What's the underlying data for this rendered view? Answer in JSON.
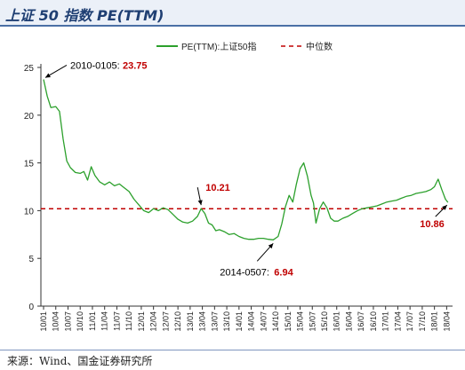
{
  "header": {
    "title": "上证 50 指数 PE(TTM)"
  },
  "source": {
    "text": "来源：Wind、国金证券研究所"
  },
  "chart_data": {
    "type": "line",
    "title": "上证 50 指数 PE(TTM)",
    "xlabel": "",
    "ylabel": "",
    "ylim": [
      0,
      25
    ],
    "y_ticks": [
      0,
      5,
      10,
      15,
      20,
      25
    ],
    "x_ticks": [
      "10/01",
      "10/04",
      "10/07",
      "10/10",
      "11/01",
      "11/04",
      "11/07",
      "11/10",
      "12/01",
      "12/04",
      "12/07",
      "12/10",
      "13/01",
      "13/04",
      "13/07",
      "13/10",
      "14/01",
      "14/04",
      "14/07",
      "14/10",
      "15/01",
      "15/04",
      "15/07",
      "15/10",
      "16/01",
      "16/04",
      "16/07",
      "16/10",
      "17/01",
      "17/04",
      "17/07",
      "17/10",
      "18/01",
      "18/04"
    ],
    "legend": {
      "position": "top",
      "entries": [
        "PE(TTM):上证50指",
        "中位数"
      ]
    },
    "series": [
      {
        "name": "PE(TTM):上证50指",
        "color": "#2ca02c",
        "style": "solid",
        "points": [
          [
            0,
            23.75
          ],
          [
            0.3,
            22.0
          ],
          [
            0.6,
            20.8
          ],
          [
            1.0,
            20.9
          ],
          [
            1.3,
            20.4
          ],
          [
            1.6,
            17.5
          ],
          [
            1.9,
            15.2
          ],
          [
            2.2,
            14.5
          ],
          [
            2.6,
            14.0
          ],
          [
            3.0,
            13.9
          ],
          [
            3.3,
            14.1
          ],
          [
            3.6,
            13.2
          ],
          [
            3.9,
            14.6
          ],
          [
            4.2,
            13.7
          ],
          [
            4.6,
            13.0
          ],
          [
            5.0,
            12.7
          ],
          [
            5.4,
            13.0
          ],
          [
            5.8,
            12.6
          ],
          [
            6.2,
            12.8
          ],
          [
            6.6,
            12.4
          ],
          [
            7.0,
            12.0
          ],
          [
            7.4,
            11.2
          ],
          [
            7.8,
            10.6
          ],
          [
            8.2,
            10.0
          ],
          [
            8.6,
            9.8
          ],
          [
            9.0,
            10.2
          ],
          [
            9.4,
            10.0
          ],
          [
            9.8,
            10.3
          ],
          [
            10.2,
            10.1
          ],
          [
            10.6,
            9.6
          ],
          [
            11.0,
            9.1
          ],
          [
            11.4,
            8.8
          ],
          [
            11.8,
            8.7
          ],
          [
            12.2,
            8.9
          ],
          [
            12.6,
            9.4
          ],
          [
            12.9,
            10.21
          ],
          [
            13.2,
            9.7
          ],
          [
            13.5,
            8.7
          ],
          [
            13.8,
            8.5
          ],
          [
            14.1,
            7.9
          ],
          [
            14.4,
            8.0
          ],
          [
            14.8,
            7.8
          ],
          [
            15.2,
            7.5
          ],
          [
            15.6,
            7.6
          ],
          [
            16.0,
            7.3
          ],
          [
            16.4,
            7.1
          ],
          [
            16.8,
            7.0
          ],
          [
            17.2,
            7.0
          ],
          [
            17.6,
            7.1
          ],
          [
            18.0,
            7.1
          ],
          [
            18.4,
            7.0
          ],
          [
            18.8,
            6.94
          ],
          [
            19.2,
            7.3
          ],
          [
            19.5,
            8.6
          ],
          [
            19.8,
            10.4
          ],
          [
            20.1,
            11.6
          ],
          [
            20.4,
            10.9
          ],
          [
            20.7,
            12.8
          ],
          [
            21.0,
            14.4
          ],
          [
            21.3,
            15.0
          ],
          [
            21.6,
            13.6
          ],
          [
            21.9,
            11.6
          ],
          [
            22.1,
            10.8
          ],
          [
            22.3,
            8.7
          ],
          [
            22.6,
            10.2
          ],
          [
            22.9,
            10.9
          ],
          [
            23.2,
            10.3
          ],
          [
            23.5,
            9.2
          ],
          [
            23.8,
            8.9
          ],
          [
            24.1,
            8.9
          ],
          [
            24.5,
            9.2
          ],
          [
            24.9,
            9.4
          ],
          [
            25.3,
            9.7
          ],
          [
            25.7,
            10.0
          ],
          [
            26.1,
            10.2
          ],
          [
            26.5,
            10.3
          ],
          [
            26.9,
            10.4
          ],
          [
            27.3,
            10.5
          ],
          [
            27.7,
            10.7
          ],
          [
            28.1,
            10.9
          ],
          [
            28.5,
            11.0
          ],
          [
            28.9,
            11.1
          ],
          [
            29.3,
            11.3
          ],
          [
            29.7,
            11.5
          ],
          [
            30.1,
            11.6
          ],
          [
            30.5,
            11.8
          ],
          [
            30.9,
            11.9
          ],
          [
            31.3,
            12.0
          ],
          [
            31.7,
            12.2
          ],
          [
            32.0,
            12.5
          ],
          [
            32.3,
            13.3
          ],
          [
            32.6,
            12.2
          ],
          [
            32.9,
            11.2
          ],
          [
            33.1,
            10.86
          ]
        ]
      },
      {
        "name": "中位数",
        "color": "#c00000",
        "style": "dashed",
        "value": 10.2
      }
    ],
    "annotations": [
      {
        "date": "2010-0105:",
        "value": "23.75",
        "x": 0,
        "y": 23.75
      },
      {
        "date": "",
        "value": "10.21",
        "x": 12.9,
        "y": 10.21
      },
      {
        "date": "2014-0507:",
        "value": "6.94",
        "x": 18.8,
        "y": 6.94
      },
      {
        "date": "",
        "value": "10.86",
        "x": 33.1,
        "y": 10.86
      }
    ]
  }
}
